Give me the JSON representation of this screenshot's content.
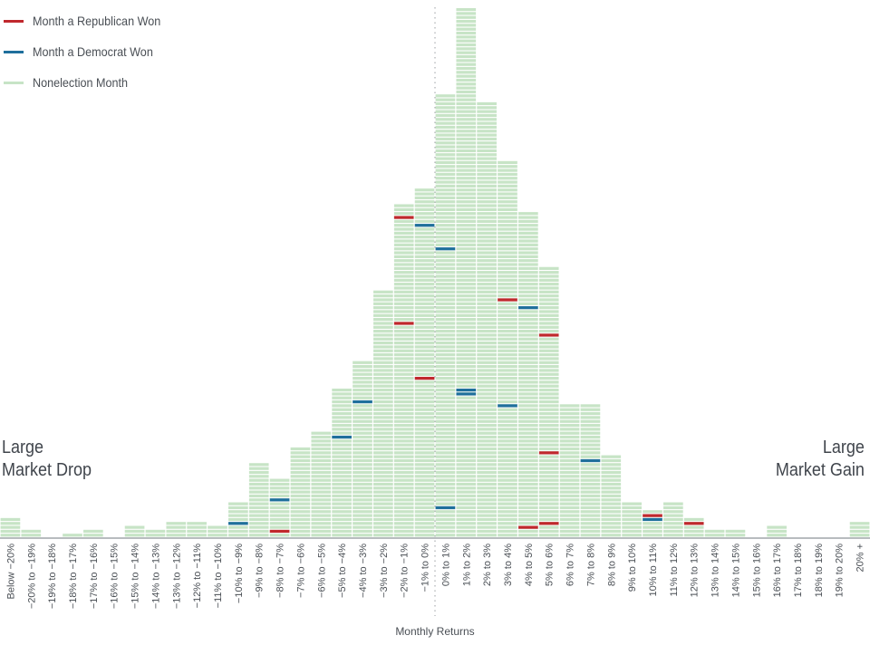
{
  "legend": [
    {
      "label": "Month a Republican Won",
      "color": "#c0282d"
    },
    {
      "label": "Month a Democrat Won",
      "color": "#1f6f9c"
    },
    {
      "label": "Nonelection Month",
      "color": "#c7e4c6"
    }
  ],
  "side_labels": {
    "left": [
      "Large",
      "Market Drop"
    ],
    "right": [
      "Large",
      "Market Gain"
    ]
  },
  "chart_data": {
    "type": "bar",
    "title": "",
    "xlabel": "Monthly Returns",
    "ylabel": "",
    "unit": "count of months (stacked blocks)",
    "grid": false,
    "legend_position": "top-left",
    "categories": [
      "Below −20%",
      "−20% to −19%",
      "−19% to −18%",
      "−18% to −17%",
      "−17% to −16%",
      "−16% to −15%",
      "−15% to −14%",
      "−14% to −13%",
      "−13% to −12%",
      "−12% to −11%",
      "−11% to −10%",
      "−10% to −9%",
      "−9% to −8%",
      "−8% to −7%",
      "−7% to −6%",
      "−6% to −5%",
      "−5% to −4%",
      "−4% to −3%",
      "−3% to −2%",
      "−2% to −1%",
      "−1% to 0%",
      "0% to 1%",
      "1% to 2%",
      "2% to 3%",
      "3% to 4%",
      "4% to 5%",
      "5% to 6%",
      "6% to 7%",
      "7% to 8%",
      "8% to 9%",
      "9% to 10%",
      "10% to 11%",
      "11% to 12%",
      "12% to 13%",
      "13% to 14%",
      "14% to 15%",
      "15% to 16%",
      "16% to 17%",
      "17% to 18%",
      "18% to 19%",
      "19% to 20%",
      "20% +"
    ],
    "values": [
      5,
      2,
      0,
      1,
      2,
      0,
      3,
      2,
      4,
      4,
      3,
      9,
      19,
      15,
      23,
      27,
      38,
      45,
      63,
      85,
      89,
      113,
      135,
      111,
      96,
      83,
      69,
      34,
      34,
      21,
      9,
      7,
      9,
      5,
      2,
      2,
      0,
      3,
      0,
      0,
      0,
      4
    ],
    "election_months": [
      {
        "category": "−10% to −9%",
        "party": "Democrat",
        "row": 4
      },
      {
        "category": "−8% to −7%",
        "party": "Republican",
        "row": 2
      },
      {
        "category": "−8% to −7%",
        "party": "Democrat",
        "row": 10
      },
      {
        "category": "−5% to −4%",
        "party": "Democrat",
        "row": 26
      },
      {
        "category": "−4% to −3%",
        "party": "Democrat",
        "row": 35
      },
      {
        "category": "−2% to −1%",
        "party": "Republican",
        "row": 55
      },
      {
        "category": "−2% to −1%",
        "party": "Republican",
        "row": 82
      },
      {
        "category": "−1% to 0%",
        "party": "Republican",
        "row": 41
      },
      {
        "category": "−1% to 0%",
        "party": "Democrat",
        "row": 80
      },
      {
        "category": "0% to 1%",
        "party": "Democrat",
        "row": 8
      },
      {
        "category": "0% to 1%",
        "party": "Democrat",
        "row": 74
      },
      {
        "category": "1% to 2%",
        "party": "Democrat",
        "row": 37
      },
      {
        "category": "1% to 2%",
        "party": "Democrat",
        "row": 38
      },
      {
        "category": "3% to 4%",
        "party": "Democrat",
        "row": 34
      },
      {
        "category": "3% to 4%",
        "party": "Republican",
        "row": 61
      },
      {
        "category": "4% to 5%",
        "party": "Republican",
        "row": 3
      },
      {
        "category": "4% to 5%",
        "party": "Democrat",
        "row": 59
      },
      {
        "category": "5% to 6%",
        "party": "Republican",
        "row": 4
      },
      {
        "category": "5% to 6%",
        "party": "Republican",
        "row": 22
      },
      {
        "category": "5% to 6%",
        "party": "Republican",
        "row": 52
      },
      {
        "category": "7% to 8%",
        "party": "Democrat",
        "row": 20
      },
      {
        "category": "10% to 11%",
        "party": "Democrat",
        "row": 5
      },
      {
        "category": "10% to 11%",
        "party": "Republican",
        "row": 6
      },
      {
        "category": "12% to 13%",
        "party": "Republican",
        "row": 4
      }
    ],
    "zero_line_after": "−1% to 0%",
    "colors": {
      "republican": "#c0282d",
      "democrat": "#1f6f9c",
      "nonelection": "#c7e4c6",
      "baseline": "#b8bcbf",
      "zero_line": "#9a9ea2"
    }
  }
}
